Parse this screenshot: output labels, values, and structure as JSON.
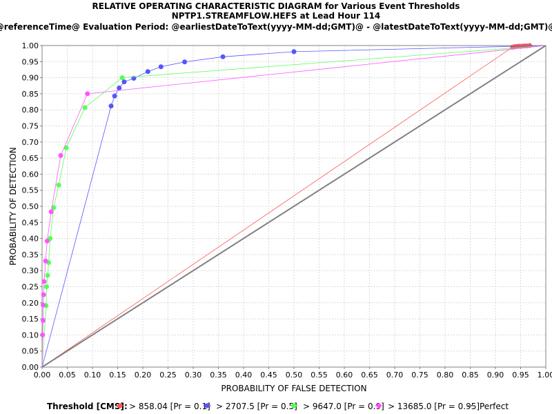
{
  "chart_data": {
    "type": "line",
    "title": "RELATIVE OPERATING CHARACTERISTIC DIAGRAM for Various Event Thresholds",
    "subtitle": "NPTP1.STREAMFLOW.HEFS at Lead Hour 114",
    "subtitle2": "@referenceTime@ Evaluation Period: @earliestDateToText(yyyy-MM-dd;GMT)@ - @latestDateToText(yyyy-MM-dd;GMT)@",
    "xlabel": "PROBABILITY OF FALSE DETECTION",
    "ylabel": "PROBABILITY OF DETECTION",
    "xlim": [
      0,
      1
    ],
    "ylim": [
      0,
      1
    ],
    "xticks": [
      "0.00",
      "0.05",
      "0.10",
      "0.15",
      "0.20",
      "0.25",
      "0.30",
      "0.35",
      "0.40",
      "0.45",
      "0.50",
      "0.55",
      "0.60",
      "0.65",
      "0.70",
      "0.75",
      "0.80",
      "0.85",
      "0.90",
      "0.95",
      "1.00"
    ],
    "yticks": [
      "0.00",
      "0.05",
      "0.10",
      "0.15",
      "0.20",
      "0.25",
      "0.30",
      "0.35",
      "0.40",
      "0.45",
      "0.50",
      "0.55",
      "0.60",
      "0.65",
      "0.70",
      "0.75",
      "0.80",
      "0.85",
      "0.90",
      "0.95",
      "1.00"
    ],
    "grid": true,
    "legend_title": "Threshold [CMS]:",
    "legend_position": "bottom",
    "series": [
      {
        "name": "> 858.04 [Pr = 0.1]",
        "color": "#ff5555",
        "points": [
          [
            0,
            0
          ],
          [
            0.934,
            0.995
          ],
          [
            0.937,
            0.996
          ],
          [
            0.94,
            0.997
          ],
          [
            0.946,
            0.998
          ],
          [
            0.952,
            0.998
          ],
          [
            0.957,
            0.999
          ],
          [
            0.962,
            0.999
          ],
          [
            0.968,
            1.0
          ],
          [
            1,
            1
          ]
        ]
      },
      {
        "name": "> 2707.5 [Pr = 0.5]",
        "color": "#5555ff",
        "points": [
          [
            0,
            0
          ],
          [
            0.137,
            0.812
          ],
          [
            0.144,
            0.843
          ],
          [
            0.153,
            0.868
          ],
          [
            0.163,
            0.887
          ],
          [
            0.182,
            0.898
          ],
          [
            0.21,
            0.919
          ],
          [
            0.236,
            0.934
          ],
          [
            0.283,
            0.949
          ],
          [
            0.359,
            0.965
          ],
          [
            0.5,
            0.981
          ],
          [
            1,
            1
          ]
        ]
      },
      {
        "name": "> 9647.0 [Pr = 0.9]",
        "color": "#55ff55",
        "points": [
          [
            0,
            0
          ],
          [
            0.008,
            0.191
          ],
          [
            0.009,
            0.25
          ],
          [
            0.011,
            0.285
          ],
          [
            0.013,
            0.325
          ],
          [
            0.016,
            0.4
          ],
          [
            0.023,
            0.496
          ],
          [
            0.033,
            0.566
          ],
          [
            0.048,
            0.682
          ],
          [
            0.085,
            0.807
          ],
          [
            0.159,
            0.9
          ],
          [
            1,
            1
          ]
        ]
      },
      {
        "name": "> 13685.0 [Pr = 0.95]",
        "color": "#ff55ff",
        "points": [
          [
            0,
            0
          ],
          [
            0.001,
            0.1
          ],
          [
            0.002,
            0.145
          ],
          [
            0.002,
            0.193
          ],
          [
            0.003,
            0.225
          ],
          [
            0.004,
            0.266
          ],
          [
            0.007,
            0.33
          ],
          [
            0.01,
            0.392
          ],
          [
            0.018,
            0.483
          ],
          [
            0.037,
            0.658
          ],
          [
            0.09,
            0.85
          ],
          [
            1,
            1
          ]
        ]
      },
      {
        "name": "Perfect",
        "color": "#808080",
        "points": [
          [
            0,
            0
          ],
          [
            1,
            1
          ]
        ]
      }
    ]
  }
}
